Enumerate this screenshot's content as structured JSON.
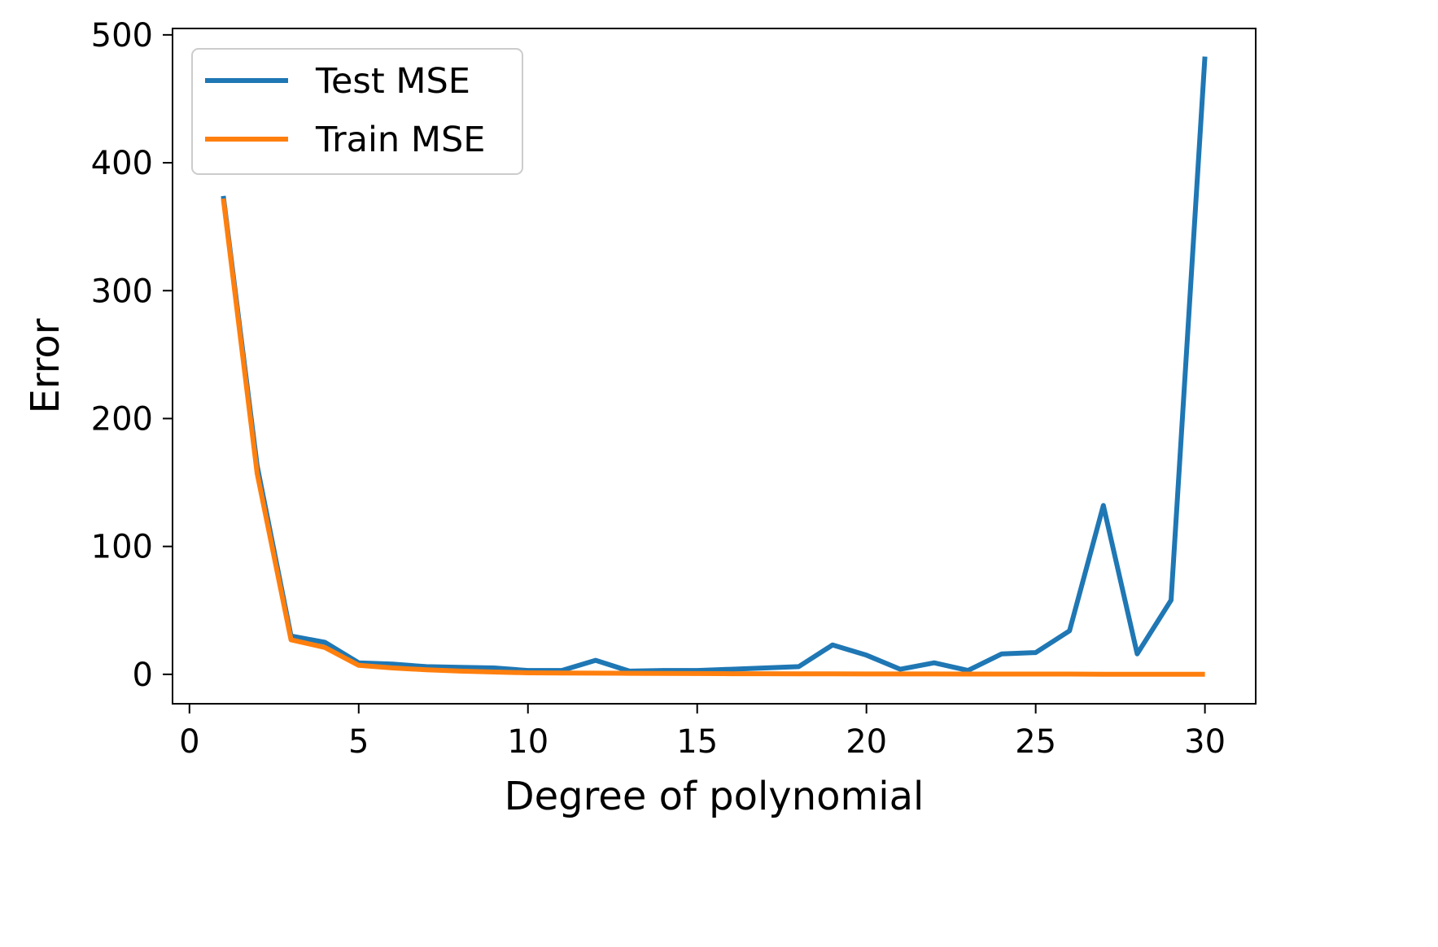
{
  "chart_data": {
    "type": "line",
    "title": "",
    "xlabel": "Degree of polynomial",
    "ylabel": "Error",
    "xlim": [
      -0.5,
      31.5
    ],
    "ylim": [
      -23,
      505
    ],
    "xticks": [
      0,
      5,
      10,
      15,
      20,
      25,
      30
    ],
    "yticks": [
      0,
      100,
      200,
      300,
      400,
      500
    ],
    "grid": false,
    "legend_position": "upper-left",
    "x": [
      1,
      2,
      3,
      4,
      5,
      6,
      7,
      8,
      9,
      10,
      11,
      12,
      13,
      14,
      15,
      16,
      17,
      18,
      19,
      20,
      21,
      22,
      23,
      24,
      25,
      26,
      27,
      28,
      29,
      30
    ],
    "series": [
      {
        "name": "Test MSE",
        "color": "#1f77b4",
        "values": [
          374,
          163,
          30,
          25,
          9,
          8,
          6,
          5.5,
          5,
          3,
          3,
          11,
          2.5,
          3,
          3,
          4,
          5,
          6,
          23,
          15,
          4,
          9,
          3,
          16,
          17,
          34,
          132,
          16,
          58,
          483
        ]
      },
      {
        "name": "Train MSE",
        "color": "#ff7f0e",
        "values": [
          372,
          157,
          27,
          21,
          7,
          5,
          3.5,
          2.5,
          1.8,
          1.2,
          1,
          0.9,
          0.8,
          0.7,
          0.6,
          0.5,
          0.5,
          0.4,
          0.4,
          0.3,
          0.3,
          0.3,
          0.2,
          0.2,
          0.2,
          0.2,
          0.1,
          0.1,
          0.1,
          0.1
        ]
      }
    ]
  }
}
